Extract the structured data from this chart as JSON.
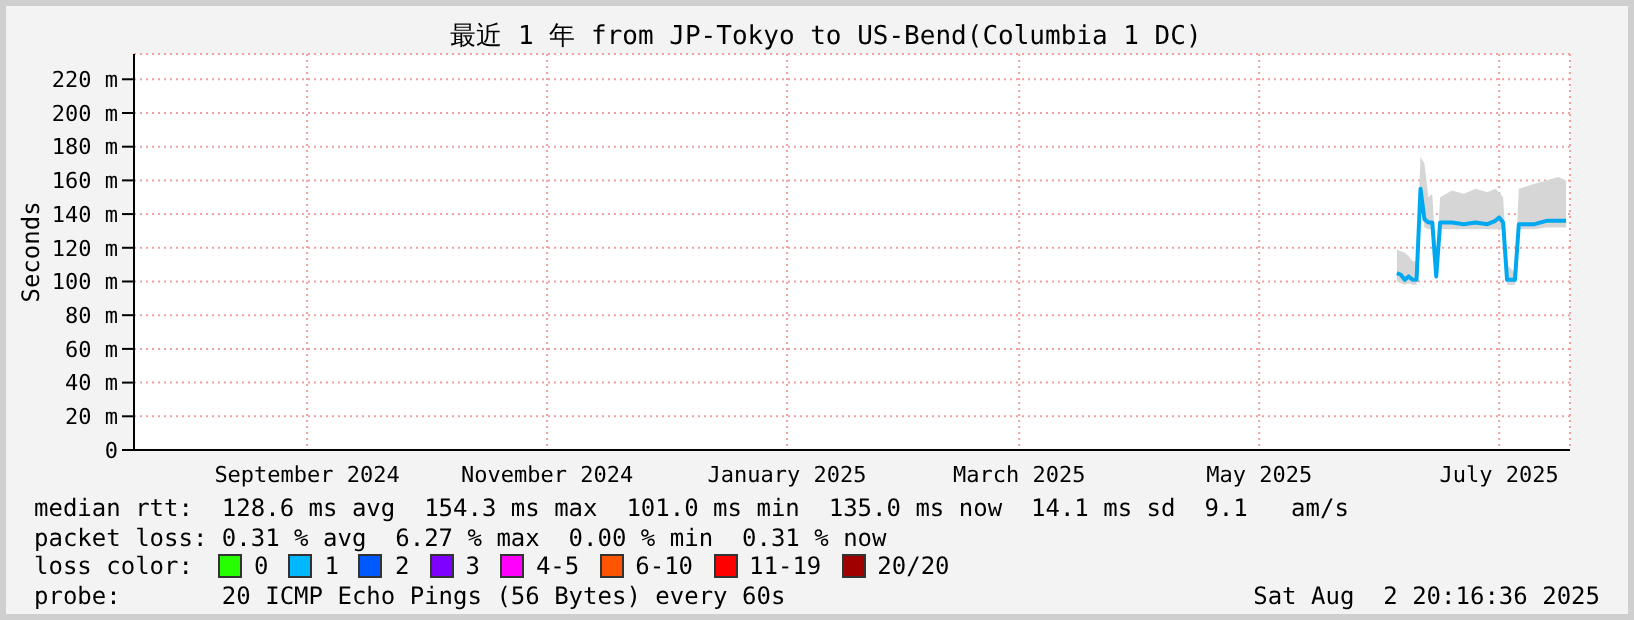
{
  "chart_data": {
    "type": "line",
    "title": "最近 1 年 from JP-Tokyo to US-Bend(Columbia 1 DC)",
    "ylabel": "Seconds",
    "xlim": [
      "2024-08-02",
      "2025-08-02"
    ],
    "xticks": [
      {
        "value": "2024-09-15",
        "label": "September 2024"
      },
      {
        "value": "2024-11-15",
        "label": "November 2024"
      },
      {
        "value": "2025-01-15",
        "label": "January 2025"
      },
      {
        "value": "2025-03-15",
        "label": "March 2025"
      },
      {
        "value": "2025-05-15",
        "label": "May 2025"
      },
      {
        "value": "2025-07-15",
        "label": "July 2025"
      }
    ],
    "ylim": [
      0,
      235
    ],
    "yticks": [
      0,
      {
        "value": 20,
        "label": "20 m"
      },
      {
        "value": 40,
        "label": "40 m"
      },
      {
        "value": 60,
        "label": "60 m"
      },
      {
        "value": 80,
        "label": "80 m"
      },
      {
        "value": 100,
        "label": "100 m"
      },
      {
        "value": 120,
        "label": "120 m"
      },
      {
        "value": 140,
        "label": "140 m"
      },
      {
        "value": 160,
        "label": "160 m"
      },
      {
        "value": 180,
        "label": "180 m"
      },
      {
        "value": 200,
        "label": "200 m"
      },
      {
        "value": 220,
        "label": "220 m"
      }
    ],
    "grid": true,
    "legend": "bottom",
    "legend_title": "loss color:",
    "series": [
      {
        "color": "#00a8f0",
        "x": [
          "2025-06-19",
          "2025-06-20",
          "2025-06-21",
          "2025-06-22",
          "2025-06-23",
          "2025-06-24",
          "2025-06-25",
          "2025-06-26",
          "2025-06-27",
          "2025-06-28",
          "2025-06-29",
          "2025-06-30",
          "2025-07-03",
          "2025-07-06",
          "2025-07-09",
          "2025-07-12",
          "2025-07-14",
          "2025-07-15",
          "2025-07-16",
          "2025-07-17",
          "2025-07-19",
          "2025-07-20",
          "2025-07-24",
          "2025-07-27",
          "2025-07-30",
          "2025-08-01"
        ],
        "values": [
          105,
          104,
          101,
          103,
          101,
          101,
          155,
          137,
          135,
          135,
          103,
          135,
          135,
          134,
          135,
          134,
          136,
          138,
          135,
          101,
          101,
          134,
          134,
          136,
          136,
          136
        ],
        "lower": [
          100,
          99,
          98,
          99,
          98,
          98,
          150,
          132,
          131,
          131,
          100,
          131,
          131,
          131,
          131,
          131,
          131,
          131,
          131,
          98,
          98,
          131,
          131,
          132,
          132,
          132
        ],
        "upper": [
          119,
          118,
          117,
          115,
          112,
          112,
          174,
          170,
          150,
          152,
          110,
          150,
          154,
          152,
          155,
          153,
          155,
          153,
          150,
          110,
          105,
          155,
          158,
          160,
          162,
          160
        ]
      },
      {
        "name": "0",
        "color": "#26ff00"
      },
      {
        "name": "1",
        "color": "#00b8ff"
      },
      {
        "name": "2",
        "color": "#0059ff"
      },
      {
        "name": "3",
        "color": "#7e00ff"
      },
      {
        "name": "4-5",
        "color": "#ff00ff"
      },
      {
        "name": "6-10",
        "color": "#ff5500"
      },
      {
        "name": "11-19",
        "color": "#ff0000"
      },
      {
        "name": "20/20",
        "color": "#a10000"
      }
    ],
    "annotations": [
      "median rtt:  128.6 ms avg  154.3 ms max  101.0 ms min  135.0 ms now  14.1 ms sd  9.1   am/s",
      "packet loss: 0.31 % avg  6.27 % max  0.00 % min  0.31 % now",
      "probe:       20 ICMP Echo Pings (56 Bytes) every 60s",
      "Sat Aug  2 20:16:36 2025"
    ]
  }
}
